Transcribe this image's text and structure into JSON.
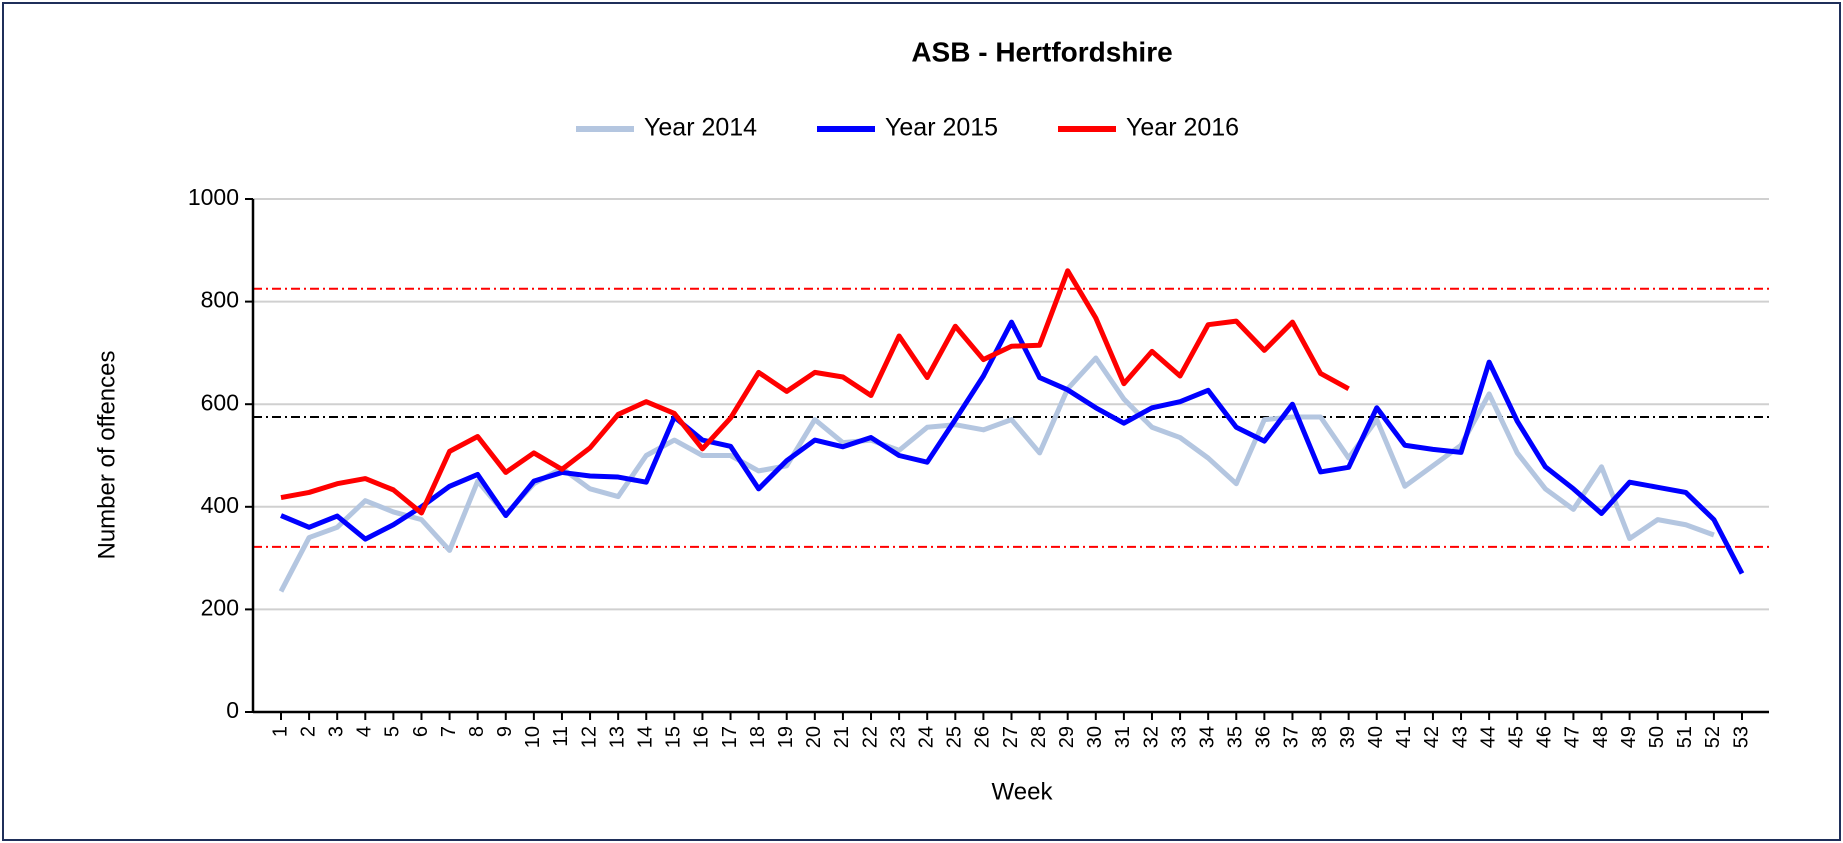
{
  "chart_data": {
    "type": "line",
    "title": "ASB - Hertfordshire",
    "x_label": "Week",
    "y_label": "Number of offences",
    "categories": [
      "1",
      "2",
      "3",
      "4",
      "5",
      "6",
      "7",
      "8",
      "9",
      "10",
      "11",
      "12",
      "13",
      "14",
      "15",
      "16",
      "17",
      "18",
      "19",
      "20",
      "21",
      "22",
      "23",
      "24",
      "25",
      "26",
      "27",
      "28",
      "29",
      "30",
      "31",
      "32",
      "33",
      "34",
      "35",
      "36",
      "37",
      "38",
      "39",
      "40",
      "41",
      "42",
      "43",
      "44",
      "45",
      "46",
      "47",
      "48",
      "49",
      "50",
      "51",
      "52",
      "53"
    ],
    "series": [
      {
        "name": "Year 2014",
        "color": "#b4c6e0",
        "values": [
          235,
          340,
          360,
          412,
          390,
          375,
          315,
          450,
          385,
          445,
          475,
          435,
          420,
          500,
          530,
          500,
          500,
          470,
          480,
          570,
          525,
          530,
          510,
          555,
          560,
          550,
          570,
          505,
          630,
          690,
          610,
          555,
          535,
          495,
          445,
          570,
          575,
          575,
          495,
          570,
          440,
          480,
          520,
          620,
          505,
          435,
          395,
          478,
          338,
          375,
          365,
          345,
          null
        ]
      },
      {
        "name": "Year 2015",
        "color": "#0000ff",
        "values": [
          383,
          360,
          382,
          337,
          365,
          400,
          440,
          463,
          383,
          450,
          467,
          460,
          458,
          448,
          575,
          530,
          518,
          435,
          490,
          530,
          517,
          535,
          500,
          487,
          570,
          655,
          760,
          652,
          628,
          593,
          563,
          593,
          605,
          627,
          555,
          528,
          600,
          468,
          477,
          593,
          520,
          512,
          506,
          682,
          567,
          478,
          435,
          387,
          448,
          438,
          428,
          375,
          270
        ]
      },
      {
        "name": "Year 2016",
        "color": "#ff0000",
        "values": [
          418,
          428,
          445,
          455,
          433,
          388,
          508,
          537,
          467,
          505,
          473,
          515,
          580,
          605,
          582,
          513,
          573,
          662,
          625,
          662,
          653,
          617,
          733,
          652,
          752,
          687,
          713,
          715,
          860,
          768,
          640,
          703,
          655,
          755,
          762,
          705,
          760,
          660,
          630,
          null,
          null,
          null,
          null,
          null,
          null,
          null,
          null,
          null,
          null,
          null,
          null,
          null,
          null
        ]
      }
    ],
    "reference_lines": [
      {
        "value": 825,
        "color": "#ff0000"
      },
      {
        "value": 575,
        "color": "#000000"
      },
      {
        "value": 322,
        "color": "#ff0000"
      }
    ],
    "ylim": [
      0,
      1000
    ],
    "yticks": [
      0,
      200,
      400,
      600,
      800,
      1000
    ],
    "grid": true,
    "legend": "top"
  }
}
